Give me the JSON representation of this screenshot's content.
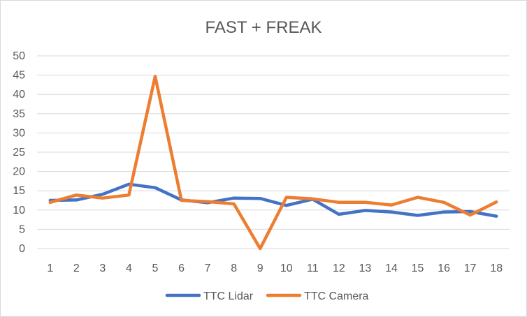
{
  "chart_data": {
    "type": "line",
    "title": "FAST + FREAK",
    "categories": [
      "1",
      "2",
      "3",
      "4",
      "5",
      "6",
      "7",
      "8",
      "9",
      "10",
      "11",
      "12",
      "13",
      "14",
      "15",
      "16",
      "17",
      "18"
    ],
    "series": [
      {
        "name": "TTC Lidar",
        "color": "#4472c4",
        "values": [
          12.5,
          12.6,
          14.1,
          16.7,
          15.8,
          12.6,
          11.9,
          13.1,
          13.0,
          11.2,
          12.8,
          8.9,
          9.9,
          9.5,
          8.6,
          9.5,
          9.6,
          8.4
        ]
      },
      {
        "name": "TTC Camera",
        "color": "#ed7d31",
        "values": [
          12.0,
          13.9,
          13.1,
          13.9,
          44.7,
          12.5,
          12.2,
          11.6,
          0.0,
          13.3,
          12.9,
          12.0,
          12.0,
          11.3,
          13.3,
          12.0,
          8.7,
          12.1
        ]
      }
    ],
    "yticks": [
      "0",
      "5",
      "10",
      "15",
      "20",
      "25",
      "30",
      "35",
      "40",
      "45",
      "50"
    ],
    "ylim": [
      0,
      50
    ],
    "xlabel": "",
    "ylabel": "",
    "grid": true,
    "legend_position": "bottom"
  }
}
